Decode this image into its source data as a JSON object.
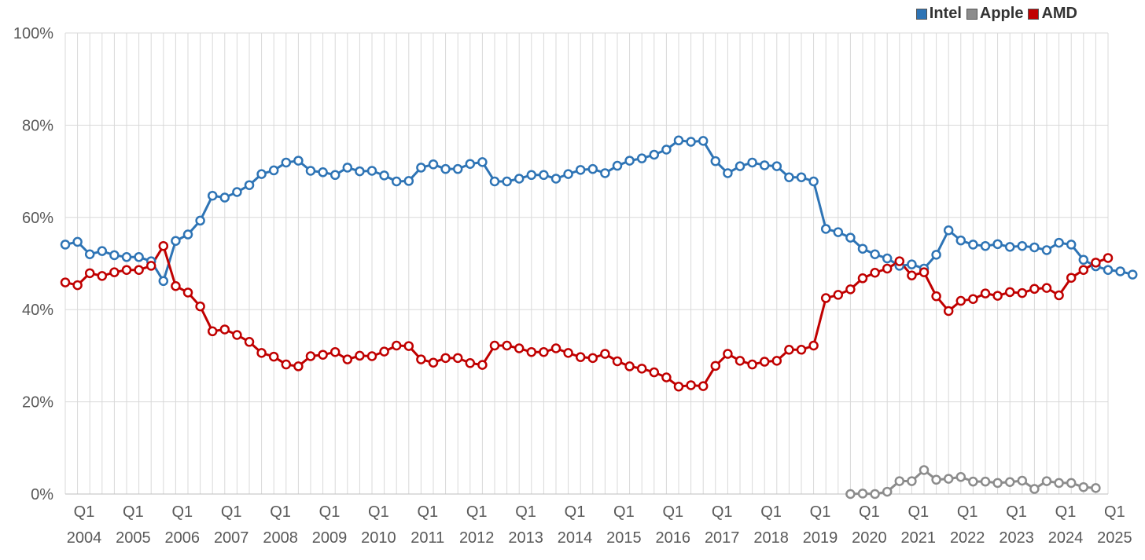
{
  "chart_data": {
    "type": "line",
    "title": "",
    "xlabel": "",
    "ylabel": "",
    "ylim": [
      0,
      100
    ],
    "y_ticks": [
      "0%",
      "20%",
      "40%",
      "60%",
      "80%",
      "100%"
    ],
    "y_tick_values": [
      0,
      20,
      40,
      60,
      80,
      100
    ],
    "quarter_label": "Q1",
    "year_labels": [
      "2004",
      "2005",
      "2006",
      "2007",
      "2008",
      "2009",
      "2010",
      "2011",
      "2012",
      "2013",
      "2014",
      "2015",
      "2016",
      "2017",
      "2018",
      "2019",
      "2020",
      "2021",
      "2022",
      "2023",
      "2024",
      "2025"
    ],
    "x_start": "2004 Q1",
    "x_interval": "quarter",
    "grid": true,
    "legend_position": "top-right",
    "series": [
      {
        "name": "Intel",
        "color": "#2e74b5",
        "start_index": 0,
        "values": [
          54.1,
          54.7,
          52.0,
          52.7,
          51.8,
          51.4,
          51.4,
          50.5,
          46.2,
          54.9,
          56.3,
          59.3,
          64.7,
          64.3,
          65.5,
          67.0,
          69.4,
          70.2,
          71.9,
          72.3,
          70.1,
          69.8,
          69.2,
          70.8,
          70.0,
          70.1,
          69.1,
          67.8,
          67.9,
          70.8,
          71.5,
          70.5,
          70.5,
          71.6,
          72.0,
          67.8,
          67.8,
          68.4,
          69.2,
          69.2,
          68.4,
          69.4,
          70.3,
          70.5,
          69.6,
          71.2,
          72.3,
          72.8,
          73.6,
          74.7,
          76.7,
          76.4,
          76.6,
          72.2,
          69.6,
          71.1,
          71.9,
          71.3,
          71.1,
          68.7,
          68.7,
          67.8,
          57.5,
          56.8,
          55.6,
          53.2,
          52.0,
          51.1,
          49.5,
          49.8,
          48.9,
          51.9,
          57.2,
          55.0,
          54.1,
          53.8,
          54.2,
          53.6,
          53.8,
          53.5,
          52.9,
          54.5,
          54.1,
          50.8,
          49.4,
          48.6,
          48.3,
          47.6
        ]
      },
      {
        "name": "Apple",
        "color": "#8c8c8c",
        "start_index": 64,
        "values": [
          0.0,
          0.1,
          0.0,
          0.5,
          2.8,
          2.8,
          5.2,
          3.1,
          3.3,
          3.7,
          2.7,
          2.7,
          2.4,
          2.6,
          2.9,
          1.1,
          2.8,
          2.4,
          2.4,
          1.5,
          1.3
        ]
      },
      {
        "name": "AMD",
        "color": "#c00000",
        "start_index": 0,
        "values": [
          45.9,
          45.3,
          47.9,
          47.3,
          48.1,
          48.6,
          48.6,
          49.5,
          53.8,
          45.1,
          43.7,
          40.7,
          35.3,
          35.7,
          34.5,
          33.0,
          30.6,
          29.8,
          28.1,
          27.7,
          29.9,
          30.2,
          30.8,
          29.2,
          30.0,
          29.9,
          30.9,
          32.2,
          32.1,
          29.2,
          28.5,
          29.5,
          29.5,
          28.4,
          28.0,
          32.2,
          32.2,
          31.6,
          30.8,
          30.8,
          31.6,
          30.6,
          29.7,
          29.5,
          30.4,
          28.8,
          27.7,
          27.2,
          26.4,
          25.3,
          23.3,
          23.6,
          23.4,
          27.8,
          30.4,
          28.9,
          28.1,
          28.7,
          28.9,
          31.3,
          31.3,
          32.2,
          42.5,
          43.2,
          44.4,
          46.8,
          48.0,
          48.9,
          50.5,
          47.4,
          48.1,
          42.9,
          39.7,
          41.9,
          42.3,
          43.5,
          43.0,
          43.8,
          43.6,
          44.5,
          44.7,
          43.1,
          46.9,
          48.6,
          50.2,
          51.2
        ]
      }
    ]
  }
}
